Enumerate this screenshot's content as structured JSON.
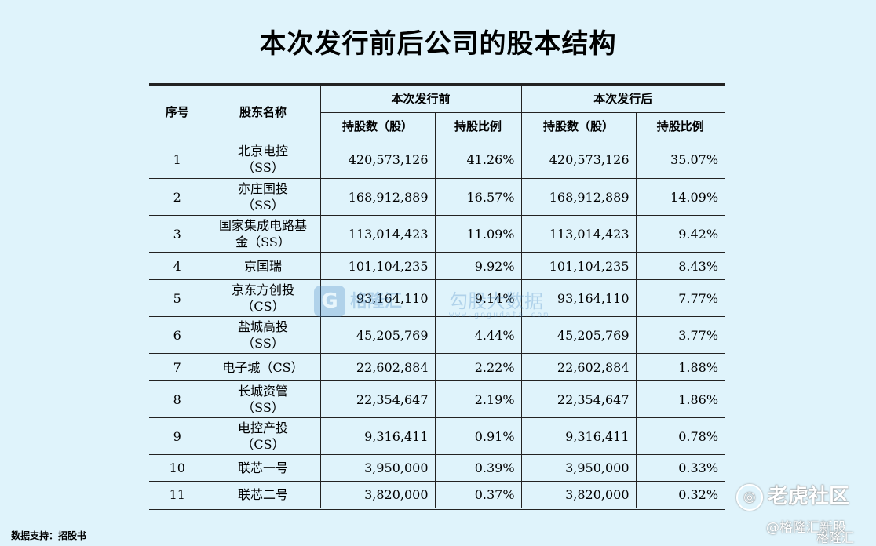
{
  "title": "本次发行前后公司的股本结构",
  "table": {
    "headers": {
      "index": "序号",
      "holder": "股东名称",
      "before": "本次发行前",
      "after": "本次发行后",
      "shares": "持股数（股）",
      "ratio": "持股比例"
    },
    "rows": [
      {
        "no": "1",
        "name_l1": "北京电控",
        "name_l2": "（SS）",
        "before_shares": "420,573,126",
        "before_ratio": "41.26%",
        "after_shares": "420,573,126",
        "after_ratio": "35.07%"
      },
      {
        "no": "2",
        "name_l1": "亦庄国投",
        "name_l2": "（SS）",
        "before_shares": "168,912,889",
        "before_ratio": "16.57%",
        "after_shares": "168,912,889",
        "after_ratio": "14.09%"
      },
      {
        "no": "3",
        "name_l1": "国家集成电路基",
        "name_l2": "金（SS）",
        "before_shares": "113,014,423",
        "before_ratio": "11.09%",
        "after_shares": "113,014,423",
        "after_ratio": "9.42%"
      },
      {
        "no": "4",
        "name_l1": "京国瑞",
        "name_l2": "",
        "before_shares": "101,104,235",
        "before_ratio": "9.92%",
        "after_shares": "101,104,235",
        "after_ratio": "8.43%"
      },
      {
        "no": "5",
        "name_l1": "京东方创投",
        "name_l2": "（CS）",
        "before_shares": "93,164,110",
        "before_ratio": "9.14%",
        "after_shares": "93,164,110",
        "after_ratio": "7.77%"
      },
      {
        "no": "6",
        "name_l1": "盐城高投",
        "name_l2": "（SS）",
        "before_shares": "45,205,769",
        "before_ratio": "4.44%",
        "after_shares": "45,205,769",
        "after_ratio": "3.77%"
      },
      {
        "no": "7",
        "name_l1": "电子城（CS）",
        "name_l2": "",
        "before_shares": "22,602,884",
        "before_ratio": "2.22%",
        "after_shares": "22,602,884",
        "after_ratio": "1.88%"
      },
      {
        "no": "8",
        "name_l1": "长城资管",
        "name_l2": "（SS）",
        "before_shares": "22,354,647",
        "before_ratio": "2.19%",
        "after_shares": "22,354,647",
        "after_ratio": "1.86%"
      },
      {
        "no": "9",
        "name_l1": "电控产投",
        "name_l2": "（CS）",
        "before_shares": "9,316,411",
        "before_ratio": "0.91%",
        "after_shares": "9,316,411",
        "after_ratio": "0.78%"
      },
      {
        "no": "10",
        "name_l1": "联芯一号",
        "name_l2": "",
        "before_shares": "3,950,000",
        "before_ratio": "0.39%",
        "after_shares": "3,950,000",
        "after_ratio": "0.33%"
      },
      {
        "no": "11",
        "name_l1": "联芯二号",
        "name_l2": "",
        "before_shares": "3,820,000",
        "before_ratio": "0.37%",
        "after_shares": "3,820,000",
        "after_ratio": "0.32%"
      }
    ]
  },
  "watermark": {
    "logo": "G",
    "brand1": "格隆汇",
    "brand2": "勾股大数据",
    "url": "www.gogudata.com"
  },
  "source": "数据支持：招股书",
  "overlay": {
    "tiger": "老虎社区",
    "handle": "@格隆汇新股",
    "corner": "格隆汇"
  }
}
